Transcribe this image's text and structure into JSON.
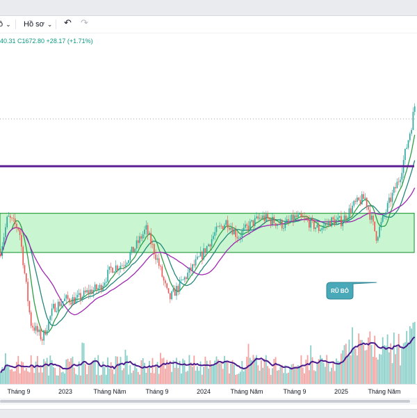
{
  "toolbar": {
    "first_label": "ồ",
    "profile_label": "Hồ sơ",
    "undo_icon": "undo-icon",
    "redo_icon": "redo-icon"
  },
  "ohlc": {
    "text": "40.31  C1672.80  +28.17 (+1.71%)"
  },
  "annotation": {
    "label": "RŨ BỎ"
  },
  "colors": {
    "resistance_line": "#5c1d91",
    "zone_fill": "#b7f3c0",
    "zone_border": "#2e9e45",
    "candle_up": "#26a69a",
    "candle_down": "#ef5350",
    "ma_green": "#2e9e45",
    "ma_teal": "#22867a",
    "ma_purple": "#9c27b0",
    "volume_ma": "#4a1a8c",
    "callout": "#4aa9b8"
  },
  "chart_data": {
    "type": "candlestick",
    "x_tick_labels": [
      "Tháng 9",
      "2023",
      "Tháng Năm",
      "Tháng 9",
      "2024",
      "Tháng Năm",
      "Tháng 9",
      "2025",
      "Tháng Năm"
    ],
    "price_path": [
      [
        "2022-07",
        1130
      ],
      [
        "2022-08",
        1270
      ],
      [
        "2022-09",
        1240
      ],
      [
        "2022-10",
        1000
      ],
      [
        "2022-11",
        960
      ],
      [
        "2022-12",
        1040
      ],
      [
        "2023-01",
        1060
      ],
      [
        "2023-02",
        1060
      ],
      [
        "2023-03",
        1080
      ],
      [
        "2023-04",
        1090
      ],
      [
        "2023-05",
        1140
      ],
      [
        "2023-06",
        1150
      ],
      [
        "2023-07",
        1190
      ],
      [
        "2023-08",
        1240
      ],
      [
        "2023-09",
        1160
      ],
      [
        "2023-10",
        1060
      ],
      [
        "2023-11",
        1100
      ],
      [
        "2023-12",
        1140
      ],
      [
        "2024-01",
        1180
      ],
      [
        "2024-02",
        1230
      ],
      [
        "2024-03",
        1260
      ],
      [
        "2024-04",
        1220
      ],
      [
        "2024-05",
        1250
      ],
      [
        "2024-06",
        1270
      ],
      [
        "2024-07",
        1260
      ],
      [
        "2024-08",
        1250
      ],
      [
        "2024-09",
        1270
      ],
      [
        "2024-10",
        1260
      ],
      [
        "2024-11",
        1240
      ],
      [
        "2024-12",
        1260
      ],
      [
        "2025-01",
        1260
      ],
      [
        "2025-02",
        1300
      ],
      [
        "2025-03",
        1320
      ],
      [
        "2025-04",
        1220
      ],
      [
        "2025-05",
        1300
      ],
      [
        "2025-06",
        1370
      ],
      [
        "2025-07",
        1500
      ],
      [
        "2025-08",
        1672.8
      ]
    ],
    "resistance_level": 1400,
    "accumulation_zone": [
      1180,
      1280
    ],
    "annotation_point": [
      "2025-04",
      1100
    ]
  }
}
